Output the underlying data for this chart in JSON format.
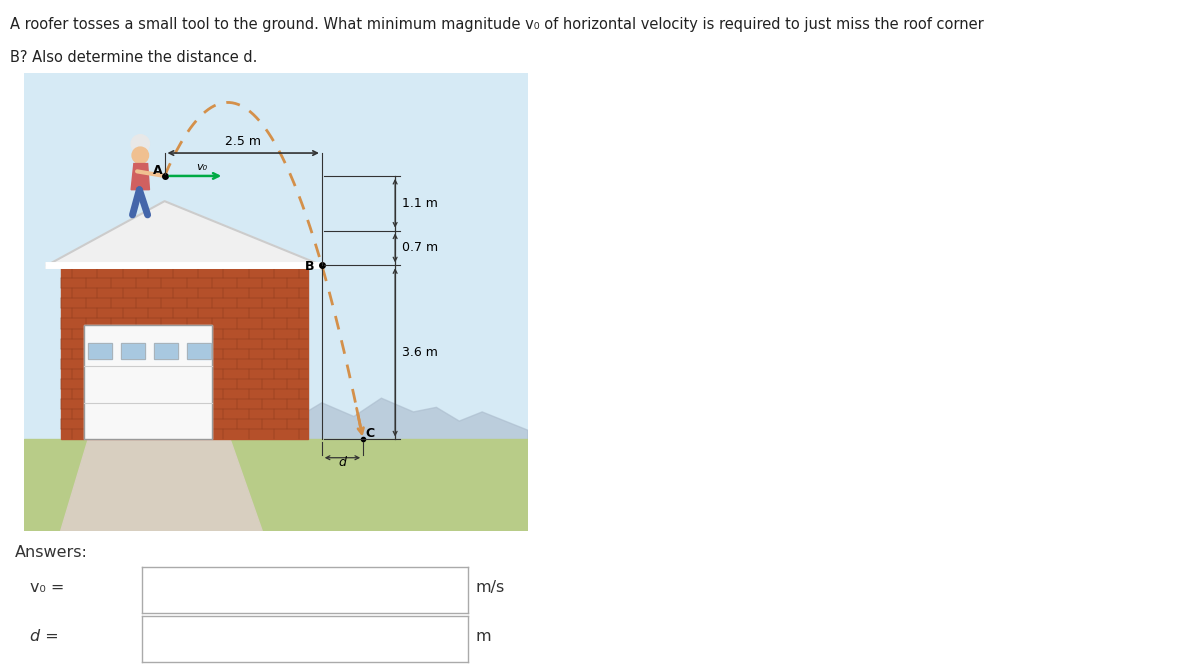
{
  "title_line1": "A roofer tosses a small tool to the ground. What minimum magnitude v₀ of horizontal velocity is required to just miss the roof corner",
  "title_line2": "B? Also determine the distance d.",
  "answers_label": "Answers:",
  "vo_label": "v₀ =",
  "d_label": "d =",
  "vo_unit": "m/s",
  "d_unit": "m",
  "dim_25": "2.5 m",
  "dim_11": "1.1 m",
  "dim_07": "0.7 m",
  "dim_36": "3.6 m",
  "label_A": "A",
  "label_B": "B",
  "label_C": "C",
  "label_d": "d",
  "label_vo": "v₀",
  "sky_color": "#d6eaf5",
  "roof_color": "#f0f0f0",
  "roof_edge_color": "#cccccc",
  "brick_color": "#b5502a",
  "brick_dark": "#8b3a1a",
  "garage_bg": "#f8f8f8",
  "garage_panel_color": "#dddddd",
  "window_color": "#a8c8e0",
  "ground_color": "#b8cc88",
  "driveway_color": "#d8cfc0",
  "sidewalk_color": "#c8c0b0",
  "traj_color": "#d4904a",
  "vo_arrow_color": "#00aa44",
  "dim_color": "#333333",
  "image_bg": "#ffffff",
  "info_btn_color": "#2196F3",
  "box_border": "#aaaaaa",
  "person_skin": "#f0c090",
  "person_shirt": "#d06060",
  "person_pants": "#4466aa",
  "person_helmet": "#e8e8e8",
  "fascia_color": "#f0f0f0",
  "mountains_color": "#aabbcc"
}
